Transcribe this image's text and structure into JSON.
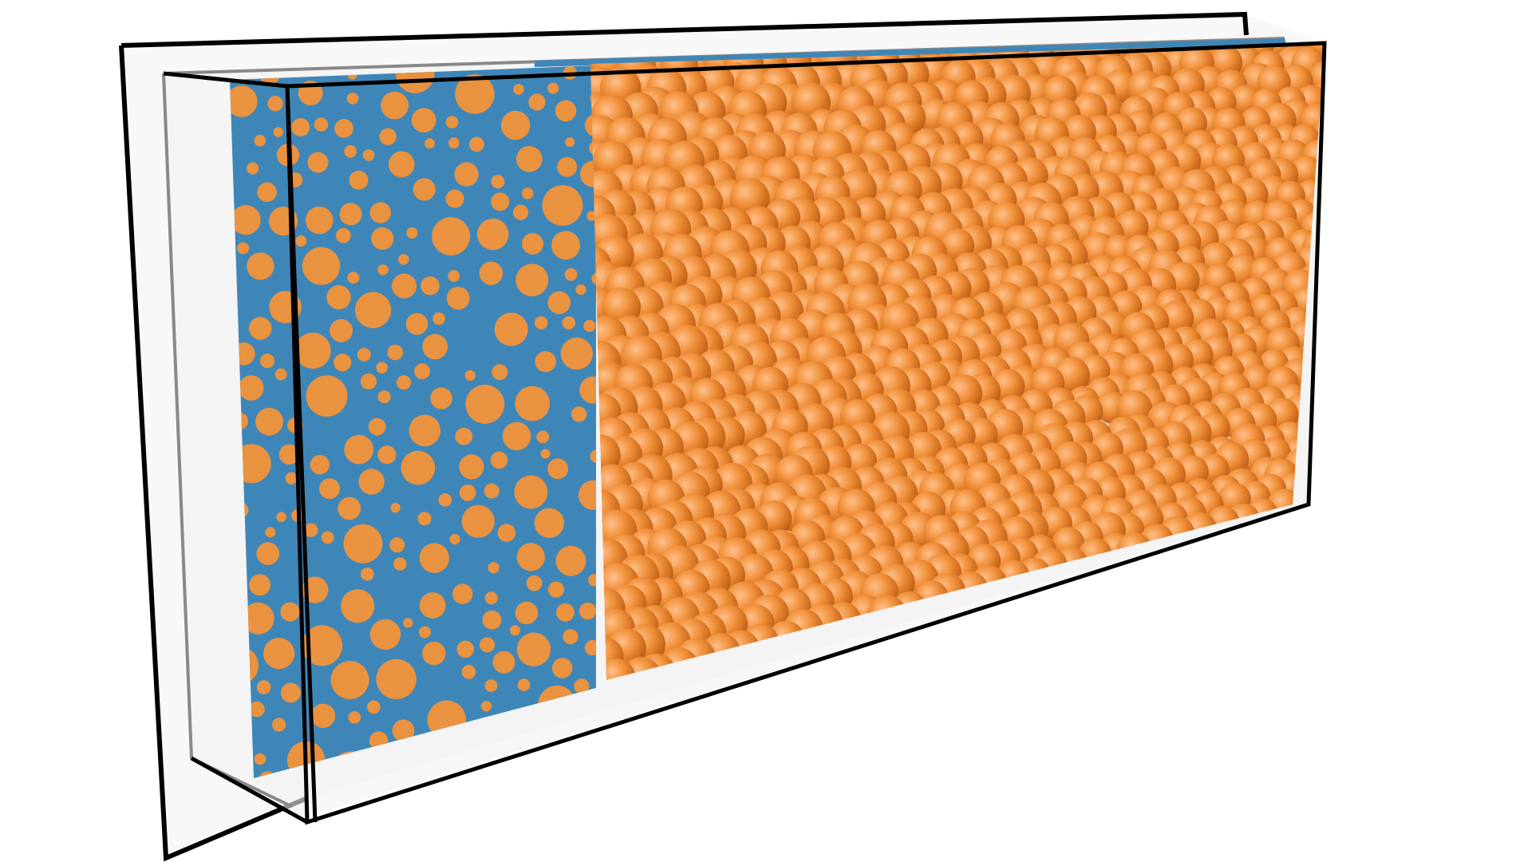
{
  "scene": {
    "background_color": "#ffffff",
    "frame_edge_color": "#000000",
    "inner_frame_edge_color": "#888888",
    "glass_fill_color": "#f2f2f2",
    "fluid_panel_color": "#3f86b8",
    "particle_color": "#f0903a",
    "particle_highlight_color": "#ffc08a",
    "particle_shadow_color": "#b8580f",
    "cross_section_particle_color": "#e9923f",
    "regions": [
      "sliced-cross-section",
      "packed-spheres"
    ]
  }
}
